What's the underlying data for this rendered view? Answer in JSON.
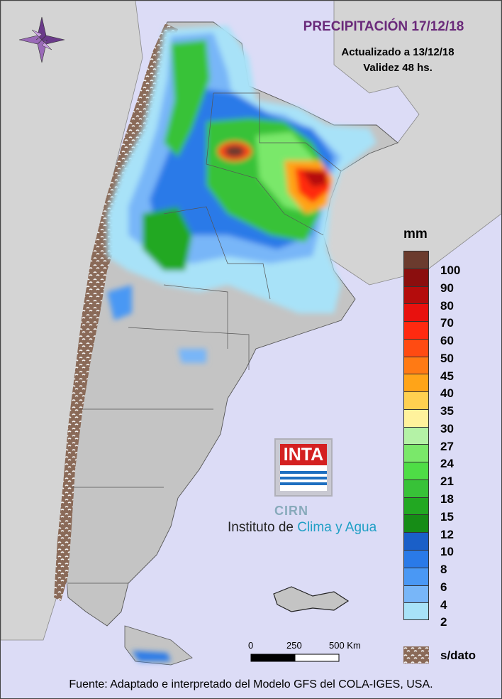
{
  "title": "PRECIPITACIÓN 17/12/18",
  "updated": "Actualizado a 13/12/18",
  "validity": "Validez 48 hs.",
  "legend": {
    "unit": "mm",
    "levels": [
      {
        "label": "100",
        "color": "#6b3b2e"
      },
      {
        "label": "90",
        "color": "#8b0e0e"
      },
      {
        "label": "80",
        "color": "#b40c0c"
      },
      {
        "label": "70",
        "color": "#e8110e"
      },
      {
        "label": "60",
        "color": "#ff2a10"
      },
      {
        "label": "50",
        "color": "#ff4b12"
      },
      {
        "label": "45",
        "color": "#ff7a14"
      },
      {
        "label": "40",
        "color": "#ffa418"
      },
      {
        "label": "35",
        "color": "#ffd050"
      },
      {
        "label": "30",
        "color": "#fff29c"
      },
      {
        "label": "27",
        "color": "#b4f2a6"
      },
      {
        "label": "24",
        "color": "#7ae86a"
      },
      {
        "label": "21",
        "color": "#4edd46"
      },
      {
        "label": "18",
        "color": "#38c238"
      },
      {
        "label": "15",
        "color": "#22a822"
      },
      {
        "label": "12",
        "color": "#168c16"
      },
      {
        "label": "10",
        "color": "#1a5fc8"
      },
      {
        "label": "8",
        "color": "#2a7ae8"
      },
      {
        "label": "6",
        "color": "#4a98f4"
      },
      {
        "label": "4",
        "color": "#78b6f8"
      },
      {
        "label": "2",
        "color": "#a8e2f8"
      }
    ],
    "nodata_label": "s/dato",
    "nodata_color": "#8a6a58"
  },
  "scale": {
    "labels": [
      "0",
      "250",
      "500 Km"
    ]
  },
  "logo": {
    "text": "INTA",
    "cirn": "CIRN",
    "institute_plain": "Instituto de",
    "institute_accent": "Clima y Agua"
  },
  "footer": "Fuente: Adaptado e interpretado del Modelo GFS del COLA-IGES, USA.",
  "colors": {
    "background": "#dcdcf6",
    "land_grey": "#c4c4c4",
    "neighbor_land": "#d4d4d4",
    "title": "#6a2a7a"
  },
  "icons": [
    "compass-rose-icon"
  ]
}
